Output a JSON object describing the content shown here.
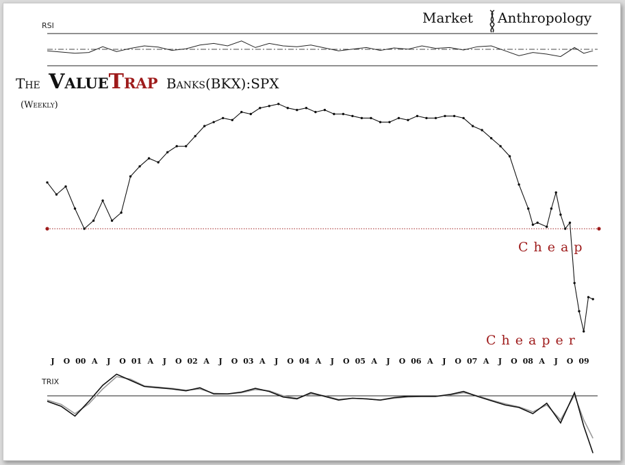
{
  "brand": {
    "left": "Market",
    "right": "Anthropology"
  },
  "title": {
    "prefix": "The",
    "value": "Value",
    "trap": "Trap",
    "suffix": "Banks(BKX):SPX",
    "frequency": "(Weekly)"
  },
  "colors": {
    "accent": "#9e1b1b",
    "line": "#000000",
    "signal": "#9a9a9a",
    "frame_bg": "#ffffff",
    "page_bg": "#dcdcdc"
  },
  "chart_data": [
    {
      "type": "line",
      "name": "RSI",
      "label": "RSI",
      "ylim": [
        0,
        100
      ],
      "reference_lines": [
        70,
        50,
        30
      ],
      "x": [
        "1999-07",
        "1999-10",
        "2000-01",
        "2000-04",
        "2000-07",
        "2000-10",
        "2001-01",
        "2001-04",
        "2001-07",
        "2001-10",
        "2002-01",
        "2002-04",
        "2002-07",
        "2002-10",
        "2003-01",
        "2003-04",
        "2003-07",
        "2003-10",
        "2004-01",
        "2004-04",
        "2004-07",
        "2004-10",
        "2005-01",
        "2005-04",
        "2005-07",
        "2005-10",
        "2006-01",
        "2006-04",
        "2006-07",
        "2006-10",
        "2007-01",
        "2007-04",
        "2007-07",
        "2007-10",
        "2008-01",
        "2008-04",
        "2008-07",
        "2008-10",
        "2009-01",
        "2009-03",
        "2009-05"
      ],
      "values": [
        48,
        45,
        42,
        44,
        58,
        46,
        54,
        60,
        57,
        49,
        53,
        62,
        66,
        60,
        72,
        56,
        66,
        60,
        58,
        62,
        55,
        48,
        52,
        56,
        49,
        55,
        52,
        60,
        54,
        56,
        50,
        58,
        60,
        48,
        36,
        44,
        40,
        34,
        56,
        42,
        48
      ]
    },
    {
      "type": "line",
      "name": "Banks (BKX):SPX",
      "xlabel_ticks": [
        "J",
        "O",
        "00",
        "A",
        "J",
        "O",
        "01",
        "A",
        "J",
        "O",
        "02",
        "A",
        "J",
        "O",
        "03",
        "A",
        "J",
        "O",
        "04",
        "A",
        "J",
        "O",
        "05",
        "A",
        "J",
        "O",
        "06",
        "A",
        "J",
        "O",
        "07",
        "A",
        "J",
        "O",
        "08",
        "A",
        "J",
        "O",
        "09"
      ],
      "ylim": [
        0.025,
        0.155
      ],
      "x": [
        "1999-07",
        "1999-09",
        "1999-11",
        "2000-01",
        "2000-03",
        "2000-05",
        "2000-07",
        "2000-09",
        "2000-11",
        "2001-01",
        "2001-03",
        "2001-05",
        "2001-07",
        "2001-09",
        "2001-11",
        "2002-01",
        "2002-03",
        "2002-05",
        "2002-07",
        "2002-09",
        "2002-11",
        "2003-01",
        "2003-03",
        "2003-05",
        "2003-07",
        "2003-09",
        "2003-11",
        "2004-01",
        "2004-03",
        "2004-05",
        "2004-07",
        "2004-09",
        "2004-11",
        "2005-01",
        "2005-03",
        "2005-05",
        "2005-07",
        "2005-09",
        "2005-11",
        "2006-01",
        "2006-03",
        "2006-05",
        "2006-07",
        "2006-09",
        "2006-11",
        "2007-01",
        "2007-03",
        "2007-05",
        "2007-07",
        "2007-09",
        "2007-11",
        "2008-01",
        "2008-03",
        "2008-04",
        "2008-05",
        "2008-07",
        "2008-08",
        "2008-09",
        "2008-10",
        "2008-11",
        "2008-12",
        "2009-01",
        "2009-02",
        "2009-03",
        "2009-04",
        "2009-05"
      ],
      "values": [
        0.113,
        0.107,
        0.111,
        0.1,
        0.09,
        0.094,
        0.104,
        0.094,
        0.098,
        0.116,
        0.121,
        0.125,
        0.123,
        0.128,
        0.131,
        0.131,
        0.136,
        0.141,
        0.143,
        0.145,
        0.144,
        0.148,
        0.147,
        0.15,
        0.151,
        0.152,
        0.15,
        0.149,
        0.15,
        0.148,
        0.149,
        0.147,
        0.147,
        0.146,
        0.145,
        0.145,
        0.143,
        0.143,
        0.145,
        0.144,
        0.146,
        0.145,
        0.145,
        0.146,
        0.146,
        0.145,
        0.141,
        0.139,
        0.135,
        0.131,
        0.126,
        0.112,
        0.1,
        0.092,
        0.093,
        0.091,
        0.1,
        0.108,
        0.097,
        0.09,
        0.093,
        0.063,
        0.049,
        0.039,
        0.056,
        0.055
      ],
      "reference_line": {
        "value": 0.09,
        "style": "dotted"
      },
      "annotations": [
        "Cheap",
        "Cheaper"
      ]
    },
    {
      "type": "line",
      "name": "TRIX",
      "label": "TRIX",
      "ylim": [
        -1.0,
        0.4
      ],
      "reference_lines": [
        0
      ],
      "x": [
        "1999-07",
        "1999-10",
        "2000-01",
        "2000-04",
        "2000-07",
        "2000-10",
        "2001-01",
        "2001-04",
        "2001-07",
        "2001-10",
        "2002-01",
        "2002-04",
        "2002-07",
        "2002-10",
        "2003-01",
        "2003-04",
        "2003-07",
        "2003-10",
        "2004-01",
        "2004-04",
        "2004-07",
        "2004-10",
        "2005-01",
        "2005-04",
        "2005-07",
        "2005-10",
        "2006-01",
        "2006-04",
        "2006-07",
        "2006-10",
        "2007-01",
        "2007-04",
        "2007-07",
        "2007-10",
        "2008-01",
        "2008-04",
        "2008-07",
        "2008-10",
        "2009-01",
        "2009-03",
        "2009-05"
      ],
      "series": [
        {
          "name": "TRIX",
          "values": [
            -0.1,
            -0.18,
            -0.34,
            -0.1,
            0.16,
            0.34,
            0.24,
            0.14,
            0.12,
            0.1,
            0.07,
            0.12,
            0.02,
            0.02,
            0.05,
            0.11,
            0.06,
            -0.03,
            -0.06,
            0.04,
            -0.02,
            -0.08,
            -0.05,
            -0.06,
            -0.08,
            -0.04,
            -0.02,
            -0.02,
            -0.02,
            0.01,
            0.06,
            -0.02,
            -0.09,
            -0.16,
            -0.2,
            -0.3,
            -0.13,
            -0.45,
            0.04,
            -0.5,
            -0.94
          ]
        },
        {
          "name": "Signal",
          "values": [
            -0.08,
            -0.15,
            -0.3,
            -0.14,
            0.1,
            0.3,
            0.26,
            0.15,
            0.13,
            0.11,
            0.08,
            0.1,
            0.03,
            0.02,
            0.04,
            0.09,
            0.07,
            -0.01,
            -0.05,
            0.02,
            -0.01,
            -0.07,
            -0.05,
            -0.06,
            -0.08,
            -0.05,
            -0.03,
            -0.02,
            -0.02,
            0.0,
            0.04,
            -0.01,
            -0.08,
            -0.14,
            -0.19,
            -0.27,
            -0.16,
            -0.4,
            0.0,
            -0.4,
            -0.7
          ]
        }
      ]
    }
  ]
}
